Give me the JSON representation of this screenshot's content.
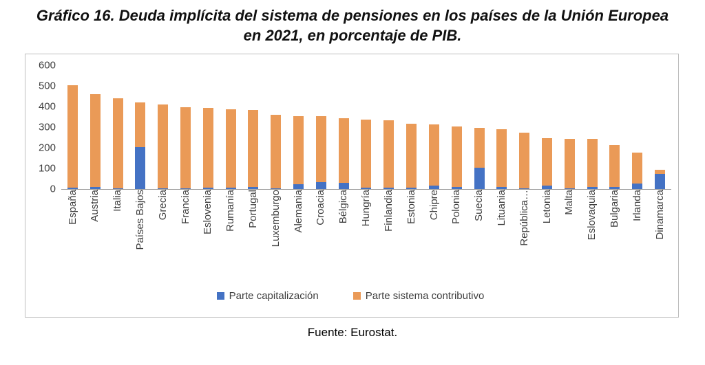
{
  "title": {
    "line1": "Gráfico 16. Deuda implícita del sistema de pensiones en los países de la Unión Europea",
    "line2": "en 2021, en porcentaje de PIB."
  },
  "source": "Fuente: Eurostat.",
  "chart_data": {
    "type": "bar",
    "stacked": true,
    "title": "Gráfico 16. Deuda implícita del sistema de pensiones en los países de la Unión Europea en 2021, en porcentaje de PIB.",
    "xlabel": "",
    "ylabel": "",
    "ylim": [
      0,
      600
    ],
    "yticks": [
      0,
      100,
      200,
      300,
      400,
      500,
      600
    ],
    "grid": false,
    "legend_position": "bottom",
    "categories": [
      "España",
      "Austria",
      "Italia",
      "Países Bajos",
      "Grecia",
      "Francia",
      "Eslovenia",
      "Rumanía",
      "Portugal",
      "Luxemburgo",
      "Alemania",
      "Croacia",
      "Bélgica",
      "Hungría",
      "Finlandia",
      "Estonia",
      "Chipre",
      "Polonia",
      "Suecia",
      "Lituania",
      "República…",
      "Letonia",
      "Malta",
      "Eslovaquia",
      "Bulgaria",
      "Irlanda",
      "Dinamarca"
    ],
    "series": [
      {
        "name": "Parte capitalización",
        "color": "#4472C4",
        "values": [
          6,
          10,
          5,
          205,
          2,
          5,
          6,
          8,
          9,
          2,
          25,
          33,
          30,
          6,
          6,
          6,
          17,
          9,
          104,
          9,
          5,
          18,
          2,
          9,
          9,
          27,
          72
        ]
      },
      {
        "name": "Parte sistema contributivo",
        "color": "#EA9A57",
        "values": [
          496,
          450,
          435,
          215,
          408,
          392,
          389,
          378,
          374,
          358,
          327,
          319,
          315,
          330,
          328,
          311,
          295,
          294,
          194,
          281,
          267,
          229,
          240,
          233,
          203,
          150,
          21
        ]
      }
    ]
  }
}
